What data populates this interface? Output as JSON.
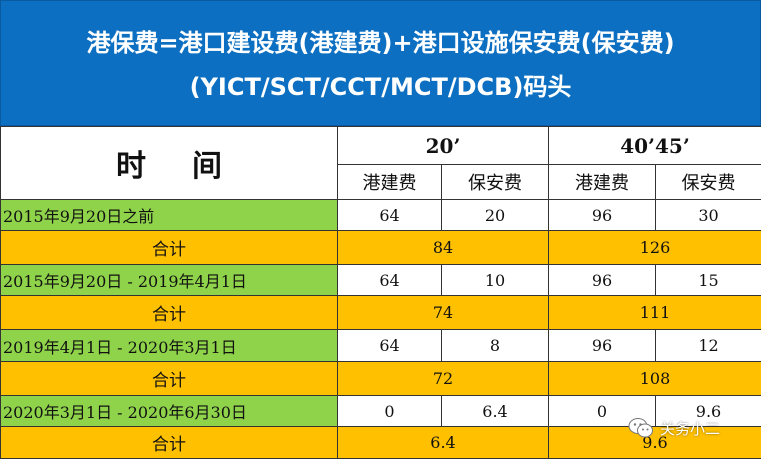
{
  "title": {
    "line1": "港保费=港口建设费(港建费)+港口设施保安费(保安费)",
    "line2": "(YICT/SCT/CCT/MCT/DCB)码头"
  },
  "table": {
    "time_header": "时间",
    "size_20": "20’",
    "size_40_45": "40’45’",
    "fee_headers": [
      "港建费",
      "保安费",
      "港建费",
      "保安费"
    ],
    "sum_label": "合计",
    "rows": [
      {
        "period": "2015年9月20日之前",
        "c20_jian": "64",
        "c20_bao": "20",
        "c40_jian": "96",
        "c40_bao": "30",
        "sum20": "84",
        "sum40": "126"
      },
      {
        "period": "2015年9月20日 - 2019年4月1日",
        "c20_jian": "64",
        "c20_bao": "10",
        "c40_jian": "96",
        "c40_bao": "15",
        "sum20": "74",
        "sum40": "111"
      },
      {
        "period": "2019年4月1日 - 2020年3月1日",
        "c20_jian": "64",
        "c20_bao": "8",
        "c40_jian": "96",
        "c40_bao": "12",
        "sum20": "72",
        "sum40": "108"
      },
      {
        "period": "2020年3月1日 - 2020年6月30日",
        "c20_jian": "0",
        "c20_bao": "6.4",
        "c40_jian": "0",
        "c40_bao": "9.6",
        "sum20": "6.4",
        "sum40": "9.6"
      }
    ]
  },
  "watermark": {
    "text": "关务小二",
    "icon": "wechat-icon"
  },
  "colors": {
    "title_bg": "#0d6fc1",
    "period_bg": "#8fd34a",
    "sum_bg": "#ffc000"
  }
}
